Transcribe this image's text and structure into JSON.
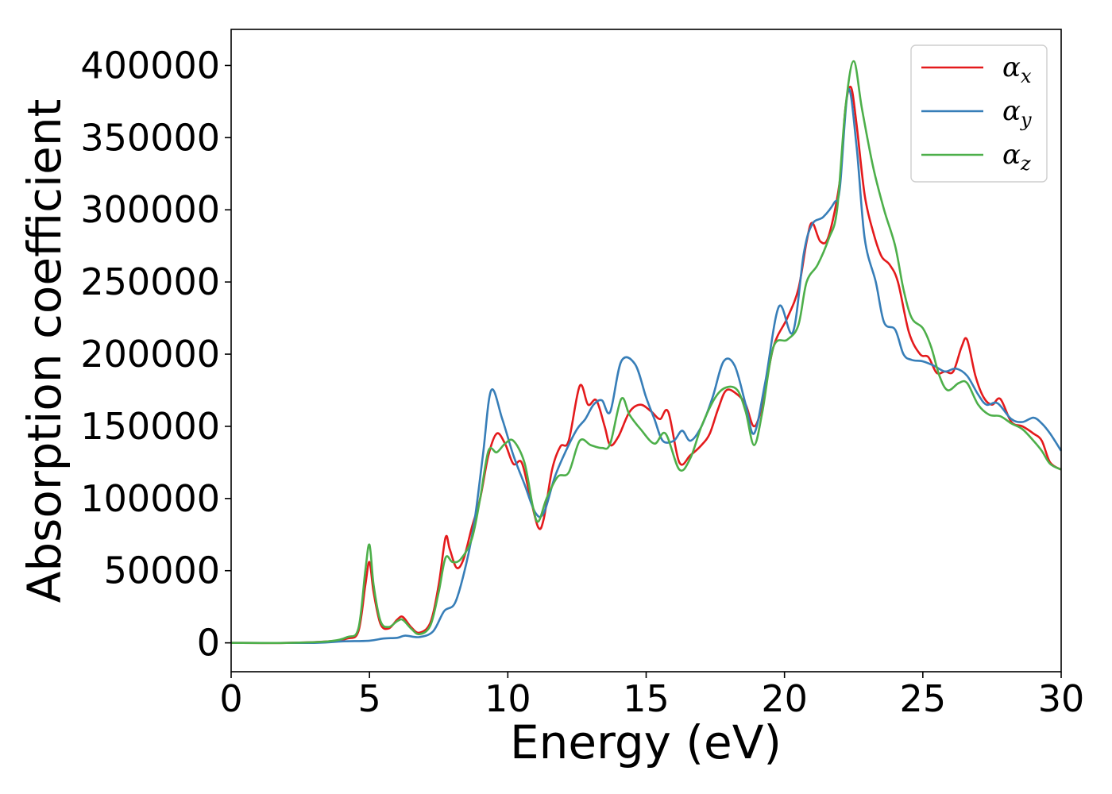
{
  "chart_data": {
    "type": "line",
    "title": "",
    "xlabel": "Energy (eV)",
    "ylabel": "Absorption coefficient",
    "xlim": [
      0,
      30
    ],
    "ylim": [
      -20000,
      425000
    ],
    "xticks": [
      0,
      5,
      10,
      15,
      20,
      25,
      30
    ],
    "xtick_labels": [
      "0",
      "5",
      "10",
      "15",
      "20",
      "25",
      "30"
    ],
    "yticks": [
      0,
      50000,
      100000,
      150000,
      200000,
      250000,
      300000,
      350000,
      400000
    ],
    "ytick_labels": [
      "0",
      "50000",
      "100000",
      "150000",
      "200000",
      "250000",
      "300000",
      "350000",
      "400000"
    ],
    "grid": false,
    "legend_position": "top-right",
    "series": [
      {
        "name": "α",
        "subscript": "x",
        "color": "#e41a1c",
        "points": [
          [
            0,
            0
          ],
          [
            2,
            0
          ],
          [
            3.5,
            1000
          ],
          [
            4.2,
            3000
          ],
          [
            4.6,
            8000
          ],
          [
            4.85,
            40000
          ],
          [
            5.0,
            56000
          ],
          [
            5.15,
            35000
          ],
          [
            5.4,
            13000
          ],
          [
            5.7,
            10000
          ],
          [
            6.0,
            16000
          ],
          [
            6.2,
            18000
          ],
          [
            6.5,
            11000
          ],
          [
            6.8,
            7000
          ],
          [
            7.2,
            14000
          ],
          [
            7.5,
            40000
          ],
          [
            7.75,
            73000
          ],
          [
            7.9,
            65000
          ],
          [
            8.15,
            52000
          ],
          [
            8.4,
            58000
          ],
          [
            8.7,
            80000
          ],
          [
            9.0,
            100000
          ],
          [
            9.3,
            130000
          ],
          [
            9.6,
            145000
          ],
          [
            9.9,
            138000
          ],
          [
            10.2,
            124000
          ],
          [
            10.5,
            125000
          ],
          [
            10.8,
            102000
          ],
          [
            11.1,
            80000
          ],
          [
            11.3,
            86000
          ],
          [
            11.6,
            120000
          ],
          [
            11.9,
            136000
          ],
          [
            12.2,
            140000
          ],
          [
            12.6,
            178000
          ],
          [
            12.9,
            165000
          ],
          [
            13.2,
            168000
          ],
          [
            13.5,
            150000
          ],
          [
            13.7,
            137000
          ],
          [
            14.0,
            143000
          ],
          [
            14.4,
            160000
          ],
          [
            14.8,
            165000
          ],
          [
            15.2,
            160000
          ],
          [
            15.5,
            155000
          ],
          [
            15.8,
            160000
          ],
          [
            16.2,
            125000
          ],
          [
            16.6,
            130000
          ],
          [
            17.0,
            137000
          ],
          [
            17.3,
            145000
          ],
          [
            17.6,
            162000
          ],
          [
            17.9,
            175000
          ],
          [
            18.3,
            172000
          ],
          [
            18.6,
            165000
          ],
          [
            18.9,
            150000
          ],
          [
            19.2,
            165000
          ],
          [
            19.6,
            205000
          ],
          [
            20.1,
            225000
          ],
          [
            20.5,
            245000
          ],
          [
            20.8,
            278000
          ],
          [
            21.0,
            291000
          ],
          [
            21.3,
            278000
          ],
          [
            21.6,
            282000
          ],
          [
            22.0,
            320000
          ],
          [
            22.2,
            370000
          ],
          [
            22.4,
            385000
          ],
          [
            22.6,
            360000
          ],
          [
            22.9,
            310000
          ],
          [
            23.2,
            285000
          ],
          [
            23.5,
            268000
          ],
          [
            23.8,
            262000
          ],
          [
            24.1,
            250000
          ],
          [
            24.5,
            215000
          ],
          [
            24.9,
            200000
          ],
          [
            25.2,
            198000
          ],
          [
            25.5,
            187000
          ],
          [
            25.8,
            188000
          ],
          [
            26.1,
            188000
          ],
          [
            26.4,
            205000
          ],
          [
            26.6,
            210000
          ],
          [
            26.9,
            185000
          ],
          [
            27.2,
            170000
          ],
          [
            27.5,
            165000
          ],
          [
            27.8,
            169000
          ],
          [
            28.2,
            153000
          ],
          [
            28.6,
            150000
          ],
          [
            29.0,
            145000
          ],
          [
            29.3,
            140000
          ],
          [
            29.6,
            125000
          ],
          [
            30,
            120000
          ]
        ]
      },
      {
        "name": "α",
        "subscript": "y",
        "color": "#377eb8",
        "points": [
          [
            0,
            0
          ],
          [
            3,
            0
          ],
          [
            4,
            1000
          ],
          [
            5,
            1500
          ],
          [
            5.5,
            3000
          ],
          [
            6.0,
            3500
          ],
          [
            6.3,
            5000
          ],
          [
            6.8,
            4000
          ],
          [
            7.3,
            8000
          ],
          [
            7.7,
            22000
          ],
          [
            8.1,
            28000
          ],
          [
            8.5,
            55000
          ],
          [
            8.8,
            85000
          ],
          [
            9.1,
            130000
          ],
          [
            9.4,
            175000
          ],
          [
            9.8,
            155000
          ],
          [
            10.2,
            130000
          ],
          [
            10.6,
            110000
          ],
          [
            11.0,
            90000
          ],
          [
            11.3,
            90000
          ],
          [
            11.7,
            115000
          ],
          [
            12.1,
            133000
          ],
          [
            12.5,
            148000
          ],
          [
            12.8,
            155000
          ],
          [
            13.1,
            165000
          ],
          [
            13.4,
            168000
          ],
          [
            13.7,
            160000
          ],
          [
            14.1,
            195000
          ],
          [
            14.6,
            193000
          ],
          [
            15.0,
            170000
          ],
          [
            15.3,
            155000
          ],
          [
            15.6,
            140000
          ],
          [
            16.0,
            140000
          ],
          [
            16.3,
            147000
          ],
          [
            16.6,
            140000
          ],
          [
            17.0,
            150000
          ],
          [
            17.4,
            170000
          ],
          [
            17.8,
            195000
          ],
          [
            18.2,
            192000
          ],
          [
            18.6,
            165000
          ],
          [
            18.9,
            145000
          ],
          [
            19.3,
            180000
          ],
          [
            19.8,
            233000
          ],
          [
            20.3,
            215000
          ],
          [
            20.7,
            270000
          ],
          [
            21.0,
            290000
          ],
          [
            21.4,
            295000
          ],
          [
            21.8,
            305000
          ],
          [
            22.0,
            315000
          ],
          [
            22.3,
            383000
          ],
          [
            22.6,
            345000
          ],
          [
            22.9,
            280000
          ],
          [
            23.3,
            250000
          ],
          [
            23.6,
            222000
          ],
          [
            24.0,
            217000
          ],
          [
            24.3,
            200000
          ],
          [
            24.6,
            196000
          ],
          [
            25.0,
            195000
          ],
          [
            25.4,
            192000
          ],
          [
            25.8,
            188000
          ],
          [
            26.2,
            190000
          ],
          [
            26.6,
            185000
          ],
          [
            27.0,
            172000
          ],
          [
            27.3,
            165000
          ],
          [
            27.7,
            166000
          ],
          [
            28.2,
            155000
          ],
          [
            28.6,
            153000
          ],
          [
            29.0,
            156000
          ],
          [
            29.3,
            152000
          ],
          [
            29.6,
            145000
          ],
          [
            30,
            133000
          ]
        ]
      },
      {
        "name": "α",
        "subscript": "z",
        "color": "#4daf4a",
        "points": [
          [
            0,
            0
          ],
          [
            2,
            0
          ],
          [
            3.5,
            1000
          ],
          [
            4.2,
            4000
          ],
          [
            4.6,
            10000
          ],
          [
            4.85,
            50000
          ],
          [
            5.0,
            68000
          ],
          [
            5.15,
            40000
          ],
          [
            5.4,
            15000
          ],
          [
            5.7,
            11000
          ],
          [
            6.0,
            15000
          ],
          [
            6.2,
            16000
          ],
          [
            6.5,
            10000
          ],
          [
            6.8,
            6000
          ],
          [
            7.2,
            12000
          ],
          [
            7.5,
            35000
          ],
          [
            7.75,
            59000
          ],
          [
            8.0,
            56000
          ],
          [
            8.3,
            58000
          ],
          [
            8.7,
            72000
          ],
          [
            9.0,
            100000
          ],
          [
            9.3,
            133000
          ],
          [
            9.6,
            132000
          ],
          [
            9.9,
            138000
          ],
          [
            10.2,
            140000
          ],
          [
            10.6,
            125000
          ],
          [
            10.9,
            95000
          ],
          [
            11.1,
            84000
          ],
          [
            11.4,
            100000
          ],
          [
            11.8,
            115000
          ],
          [
            12.2,
            118000
          ],
          [
            12.6,
            140000
          ],
          [
            13.0,
            137000
          ],
          [
            13.4,
            135000
          ],
          [
            13.7,
            138000
          ],
          [
            14.1,
            169000
          ],
          [
            14.4,
            158000
          ],
          [
            14.8,
            148000
          ],
          [
            15.3,
            138000
          ],
          [
            15.7,
            145000
          ],
          [
            16.2,
            120000
          ],
          [
            16.6,
            128000
          ],
          [
            17.0,
            150000
          ],
          [
            17.5,
            170000
          ],
          [
            17.9,
            177000
          ],
          [
            18.3,
            175000
          ],
          [
            18.6,
            160000
          ],
          [
            18.9,
            137000
          ],
          [
            19.2,
            160000
          ],
          [
            19.6,
            205000
          ],
          [
            20.1,
            210000
          ],
          [
            20.5,
            220000
          ],
          [
            20.8,
            250000
          ],
          [
            21.2,
            262000
          ],
          [
            21.6,
            280000
          ],
          [
            21.9,
            300000
          ],
          [
            22.2,
            370000
          ],
          [
            22.5,
            403000
          ],
          [
            22.8,
            370000
          ],
          [
            23.2,
            330000
          ],
          [
            23.6,
            300000
          ],
          [
            24.0,
            275000
          ],
          [
            24.3,
            245000
          ],
          [
            24.6,
            225000
          ],
          [
            25.0,
            218000
          ],
          [
            25.3,
            205000
          ],
          [
            25.6,
            185000
          ],
          [
            25.9,
            175000
          ],
          [
            26.3,
            180000
          ],
          [
            26.6,
            180000
          ],
          [
            27.0,
            165000
          ],
          [
            27.4,
            158000
          ],
          [
            27.8,
            157000
          ],
          [
            28.2,
            152000
          ],
          [
            28.6,
            148000
          ],
          [
            29.0,
            140000
          ],
          [
            29.3,
            133000
          ],
          [
            29.6,
            124000
          ],
          [
            30,
            120000
          ]
        ]
      }
    ]
  }
}
